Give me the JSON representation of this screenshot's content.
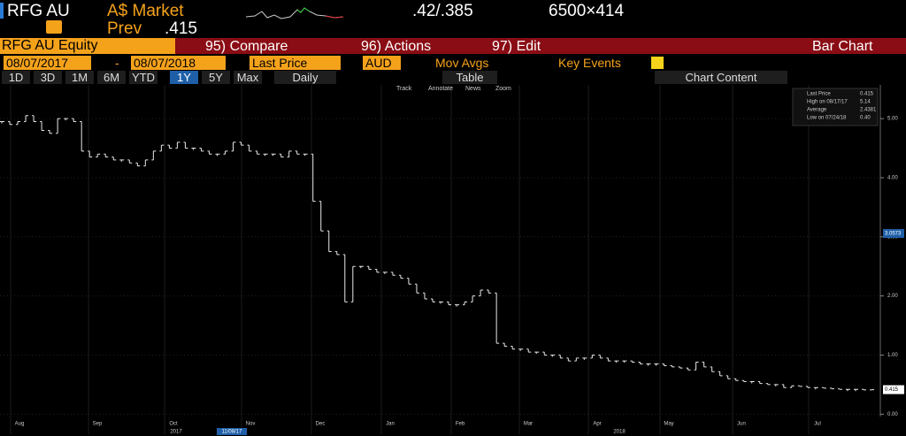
{
  "header": {
    "ticker": "RFG AU",
    "currency_market": "A$ Market",
    "quote": ".42/.385",
    "size": "6500×414",
    "prev_label": "Prev",
    "prev_value": ".415"
  },
  "menu": {
    "security": "RFG AU Equity",
    "compare": "95) Compare",
    "actions": "96) Actions",
    "edit": "97) Edit",
    "view": "Bar Chart"
  },
  "controls": {
    "start_date": "08/07/2017",
    "separator": "-",
    "end_date": "08/07/2018",
    "field": "Last Price",
    "currency": "AUD",
    "mov_avgs": "Mov Avgs",
    "key_events": "Key Events"
  },
  "periods": [
    "1D",
    "3D",
    "1M",
    "6M",
    "YTD",
    "1Y",
    "5Y",
    "Max"
  ],
  "frequency": "Daily",
  "table": "Table",
  "chart_content": "Chart Content",
  "tools": [
    "Track",
    "Annotate",
    "News",
    "Zoom"
  ],
  "chart_data": {
    "type": "bar",
    "color": "#e8e8e8",
    "values": [
      4.95,
      4.9,
      4.95,
      5.05,
      4.95,
      4.8,
      4.75,
      5.0,
      5.0,
      4.95,
      4.45,
      4.35,
      4.4,
      4.35,
      4.3,
      4.3,
      4.25,
      4.2,
      4.3,
      4.45,
      4.55,
      4.5,
      4.6,
      4.5,
      4.5,
      4.45,
      4.4,
      4.4,
      4.45,
      4.6,
      4.55,
      4.45,
      4.4,
      4.4,
      4.4,
      4.35,
      4.45,
      4.4,
      4.4,
      3.6,
      3.1,
      2.75,
      2.7,
      1.9,
      2.5,
      2.5,
      2.45,
      2.4,
      2.4,
      2.35,
      2.3,
      2.2,
      2.05,
      1.95,
      1.9,
      1.9,
      1.85,
      1.85,
      1.9,
      2.0,
      2.1,
      2.05,
      1.2,
      1.15,
      1.1,
      1.1,
      1.05,
      1.05,
      1.0,
      1.0,
      0.95,
      0.9,
      0.95,
      0.95,
      1.0,
      0.95,
      0.9,
      0.9,
      0.9,
      0.88,
      0.85,
      0.85,
      0.85,
      0.82,
      0.8,
      0.78,
      0.75,
      0.88,
      0.8,
      0.72,
      0.65,
      0.6,
      0.57,
      0.55,
      0.55,
      0.52,
      0.5,
      0.5,
      0.45,
      0.48,
      0.47,
      0.45,
      0.45,
      0.44,
      0.43,
      0.42,
      0.42,
      0.42,
      0.41,
      0.415
    ],
    "ylim": [
      -0.04,
      5.54
    ],
    "yticks": [
      {
        "value": 0,
        "label": "0.00"
      },
      {
        "value": 1,
        "label": "1.00"
      },
      {
        "value": 2,
        "label": "2.00"
      },
      {
        "value": 3,
        "label": "3.00"
      },
      {
        "value": 4,
        "label": "4.00"
      },
      {
        "value": 5,
        "label": "5.00"
      }
    ],
    "markers": [
      3.0573,
      0.415
    ],
    "months": [
      "Aug",
      "Sep",
      "Oct",
      "Nov",
      "Dec",
      "Jan",
      "Feb",
      "Mar",
      "Apr",
      "May",
      "Jun",
      "Jul"
    ],
    "years": [
      "2017",
      "2018"
    ],
    "cursor_date": "11/08/17",
    "legend": [
      {
        "label": "Last Price",
        "value": "0.415"
      },
      {
        "label": "High on 08/17/17",
        "value": "5.14"
      },
      {
        "label": "Average",
        "value": "2.4381"
      },
      {
        "label": "Low on 07/24/18",
        "value": "0.40"
      }
    ]
  }
}
